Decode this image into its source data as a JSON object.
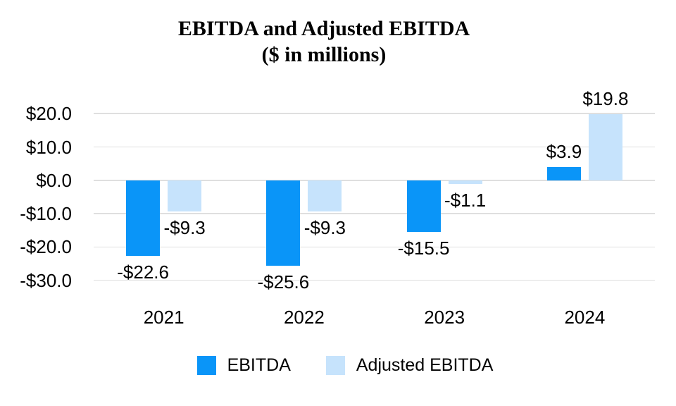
{
  "chart_data": {
    "type": "bar",
    "title": "EBITDA and Adjusted EBITDA",
    "subtitle": "($ in millions)",
    "categories": [
      "2021",
      "2022",
      "2023",
      "2024"
    ],
    "series": [
      {
        "name": "EBITDA",
        "color": "#0a95f8",
        "values": [
          -22.6,
          -25.6,
          -15.5,
          3.9
        ],
        "labels": [
          "-$22.6",
          "-$25.6",
          "-$15.5",
          "$3.9"
        ]
      },
      {
        "name": "Adjusted EBITDA",
        "color": "#c6e3fc",
        "values": [
          -9.3,
          -9.3,
          -1.1,
          19.8
        ],
        "labels": [
          "-$9.3",
          "-$9.3",
          "-$1.1",
          "$19.8"
        ]
      }
    ],
    "y_axis": {
      "ticks": [
        20,
        10,
        0,
        -10,
        -20,
        -30
      ],
      "tick_labels": [
        "$20.0",
        "$10.0",
        "$0.0",
        "-$10.0",
        "-$20.0",
        "-$30.0"
      ],
      "range": [
        -30,
        20
      ]
    },
    "grid": true,
    "gridline_color": "#dfdfdf",
    "legend_position": "bottom"
  }
}
